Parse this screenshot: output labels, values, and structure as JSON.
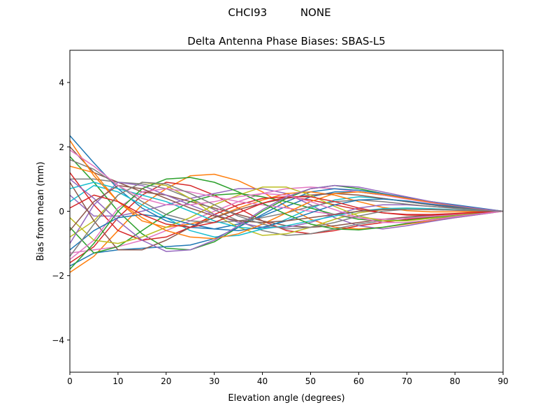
{
  "suptitle": "CHCI93          NONE",
  "chart_data": {
    "type": "line",
    "title": "Delta Antenna Phase Biases: SBAS-L5",
    "xlabel": "Elevation angle (degrees)",
    "ylabel": "Bias from mean (mm)",
    "xlim": [
      0,
      90
    ],
    "ylim": [
      -5,
      5
    ],
    "xticks": [
      0,
      10,
      20,
      30,
      40,
      50,
      60,
      70,
      80,
      90
    ],
    "yticks": [
      -4,
      -2,
      0,
      2,
      4
    ],
    "ytick_labels": [
      "−4",
      "−2",
      "0",
      "2",
      "4"
    ],
    "grid": false,
    "legend": "none",
    "colors": [
      "#1f77b4",
      "#ff7f0e",
      "#2ca02c",
      "#d62728",
      "#9467bd",
      "#8c564b",
      "#e377c2",
      "#7f7f7f",
      "#bcbd22",
      "#17becf"
    ],
    "x": [
      0,
      5,
      10,
      15,
      20,
      25,
      30,
      35,
      40,
      45,
      50,
      55,
      60,
      65,
      70,
      75,
      80,
      85,
      90
    ],
    "series": [
      {
        "values": [
          2.35,
          1.5,
          0.7,
          0.1,
          -0.3,
          -0.5,
          -0.55,
          -0.4,
          -0.15,
          0.15,
          0.45,
          0.6,
          0.6,
          0.5,
          0.4,
          0.3,
          0.2,
          0.1,
          0
        ]
      },
      {
        "values": [
          -1.9,
          -1.4,
          -0.6,
          0.2,
          0.7,
          1.1,
          1.15,
          0.95,
          0.6,
          0.15,
          -0.25,
          -0.5,
          -0.55,
          -0.5,
          -0.4,
          -0.3,
          -0.2,
          -0.1,
          0
        ]
      },
      {
        "values": [
          1.7,
          0.9,
          0.0,
          -0.7,
          -1.15,
          -1.2,
          -0.95,
          -0.5,
          0.0,
          0.4,
          0.7,
          0.8,
          0.7,
          0.55,
          0.4,
          0.28,
          0.18,
          0.08,
          0
        ]
      },
      {
        "values": [
          -1.6,
          -1.1,
          -0.2,
          0.5,
          0.9,
          0.8,
          0.5,
          0.1,
          -0.3,
          -0.6,
          -0.7,
          -0.6,
          -0.45,
          -0.35,
          -0.25,
          -0.18,
          -0.12,
          -0.05,
          0
        ]
      },
      {
        "values": [
          0.5,
          -0.15,
          -0.15,
          0.0,
          0.2,
          0.4,
          0.55,
          0.7,
          0.7,
          0.55,
          0.2,
          -0.2,
          -0.45,
          -0.55,
          -0.45,
          -0.32,
          -0.2,
          -0.1,
          0
        ]
      },
      {
        "values": [
          2.0,
          1.2,
          0.9,
          0.6,
          0.5,
          0.3,
          0.1,
          -0.1,
          -0.3,
          -0.45,
          -0.5,
          -0.45,
          -0.35,
          -0.25,
          -0.18,
          -0.12,
          -0.08,
          -0.04,
          0
        ]
      },
      {
        "values": [
          -1.3,
          -1.2,
          -1.1,
          -0.9,
          -0.6,
          -0.3,
          0.0,
          0.3,
          0.55,
          0.7,
          0.75,
          0.7,
          0.6,
          0.5,
          0.38,
          0.26,
          0.16,
          0.07,
          0
        ]
      },
      {
        "values": [
          1.0,
          1.0,
          0.9,
          0.85,
          0.7,
          0.4,
          0.05,
          -0.3,
          -0.6,
          -0.75,
          -0.7,
          -0.55,
          -0.4,
          -0.3,
          -0.2,
          -0.13,
          -0.08,
          -0.03,
          0
        ]
      },
      {
        "values": [
          -0.8,
          -0.3,
          0.5,
          0.9,
          0.8,
          0.4,
          -0.1,
          -0.5,
          -0.75,
          -0.7,
          -0.5,
          -0.25,
          -0.05,
          0.05,
          0.08,
          0.06,
          0.04,
          0.02,
          0
        ]
      },
      {
        "values": [
          0.3,
          0.8,
          0.6,
          0.2,
          -0.2,
          -0.6,
          -0.8,
          -0.75,
          -0.55,
          -0.25,
          0.1,
          0.35,
          0.45,
          0.4,
          0.3,
          0.2,
          0.12,
          0.05,
          0
        ]
      },
      {
        "values": [
          -1.7,
          -1.3,
          -1.2,
          -1.15,
          -1.1,
          -1.05,
          -0.85,
          -0.5,
          -0.1,
          0.3,
          0.6,
          0.7,
          0.65,
          0.55,
          0.42,
          0.3,
          0.18,
          0.08,
          0
        ]
      },
      {
        "values": [
          1.4,
          1.2,
          0.3,
          -0.3,
          -0.5,
          -0.4,
          -0.2,
          0.1,
          0.35,
          0.55,
          0.6,
          0.5,
          0.3,
          0.12,
          0.02,
          -0.02,
          -0.02,
          -0.01,
          0
        ]
      },
      {
        "values": [
          -0.5,
          -1.3,
          -1.1,
          -0.6,
          -0.1,
          0.3,
          0.5,
          0.55,
          0.45,
          0.3,
          0.1,
          -0.1,
          -0.25,
          -0.3,
          -0.28,
          -0.2,
          -0.13,
          -0.06,
          0
        ]
      },
      {
        "values": [
          1.2,
          0.2,
          -0.6,
          -0.9,
          -0.8,
          -0.5,
          -0.1,
          0.2,
          0.4,
          0.45,
          0.35,
          0.2,
          0.05,
          -0.05,
          -0.1,
          -0.1,
          -0.07,
          -0.03,
          0
        ]
      },
      {
        "values": [
          -1.0,
          0.2,
          0.9,
          0.8,
          0.5,
          0.2,
          -0.1,
          -0.35,
          -0.5,
          -0.5,
          -0.35,
          -0.1,
          0.1,
          0.2,
          0.2,
          0.15,
          0.1,
          0.05,
          0
        ]
      },
      {
        "values": [
          0.9,
          -0.3,
          -1.2,
          -1.2,
          -0.9,
          -0.5,
          -0.2,
          0.05,
          0.25,
          0.4,
          0.5,
          0.55,
          0.5,
          0.4,
          0.3,
          0.2,
          0.12,
          0.05,
          0
        ]
      },
      {
        "values": [
          -1.5,
          -0.9,
          0.1,
          0.6,
          0.7,
          0.6,
          0.45,
          0.3,
          0.2,
          0.1,
          0.0,
          -0.1,
          -0.2,
          -0.25,
          -0.22,
          -0.16,
          -0.1,
          -0.05,
          0
        ]
      },
      {
        "values": [
          1.6,
          1.3,
          0.8,
          0.3,
          -0.1,
          -0.3,
          -0.35,
          -0.3,
          -0.2,
          -0.05,
          0.15,
          0.3,
          0.35,
          0.3,
          0.22,
          0.15,
          0.09,
          0.04,
          0
        ]
      },
      {
        "values": [
          -0.2,
          -0.9,
          -1.0,
          -0.8,
          -0.5,
          -0.2,
          0.2,
          0.5,
          0.75,
          0.75,
          0.5,
          0.15,
          -0.15,
          -0.3,
          -0.3,
          -0.22,
          -0.14,
          -0.06,
          0
        ]
      },
      {
        "values": [
          0.7,
          0.9,
          0.7,
          0.5,
          0.3,
          0.0,
          -0.3,
          -0.5,
          -0.55,
          -0.45,
          -0.3,
          -0.15,
          0.0,
          0.08,
          0.1,
          0.08,
          0.05,
          0.02,
          0
        ]
      },
      {
        "values": [
          -1.2,
          -0.6,
          -0.2,
          -0.1,
          -0.2,
          -0.4,
          -0.55,
          -0.6,
          -0.5,
          -0.3,
          -0.05,
          0.2,
          0.35,
          0.38,
          0.32,
          0.22,
          0.14,
          0.06,
          0
        ]
      },
      {
        "values": [
          2.2,
          1.1,
          0.3,
          -0.2,
          -0.6,
          -0.8,
          -0.85,
          -0.7,
          -0.4,
          -0.05,
          0.3,
          0.55,
          0.6,
          0.52,
          0.4,
          0.28,
          0.17,
          0.07,
          0
        ]
      },
      {
        "values": [
          -1.8,
          -1.0,
          0.0,
          0.7,
          1.0,
          1.05,
          0.9,
          0.6,
          0.25,
          -0.1,
          -0.4,
          -0.55,
          -0.58,
          -0.5,
          -0.38,
          -0.26,
          -0.16,
          -0.07,
          0
        ]
      },
      {
        "values": [
          0.1,
          0.5,
          0.3,
          -0.1,
          -0.4,
          -0.5,
          -0.35,
          -0.05,
          0.25,
          0.45,
          0.45,
          0.3,
          0.1,
          -0.05,
          -0.12,
          -0.12,
          -0.08,
          -0.04,
          0
        ]
      },
      {
        "values": [
          1.0,
          0.4,
          -0.3,
          -0.9,
          -1.25,
          -1.2,
          -0.9,
          -0.45,
          0.05,
          0.45,
          0.7,
          0.8,
          0.75,
          0.6,
          0.45,
          0.3,
          0.18,
          0.08,
          0
        ]
      },
      {
        "values": [
          -0.6,
          0.3,
          0.8,
          0.7,
          0.4,
          0.1,
          -0.15,
          -0.3,
          -0.35,
          -0.3,
          -0.2,
          -0.1,
          0.0,
          0.05,
          0.06,
          0.05,
          0.03,
          0.01,
          0
        ]
      },
      {
        "values": [
          1.9,
          1.4,
          0.8,
          0.4,
          0.2,
          0.2,
          0.3,
          0.45,
          0.55,
          0.5,
          0.3,
          0.05,
          -0.2,
          -0.35,
          -0.35,
          -0.27,
          -0.17,
          -0.08,
          0
        ]
      },
      {
        "values": [
          -1.4,
          -0.4,
          0.5,
          0.9,
          0.85,
          0.55,
          0.2,
          -0.15,
          -0.4,
          -0.55,
          -0.5,
          -0.35,
          -0.15,
          0.0,
          0.06,
          0.06,
          0.04,
          0.02,
          0
        ]
      }
    ]
  }
}
